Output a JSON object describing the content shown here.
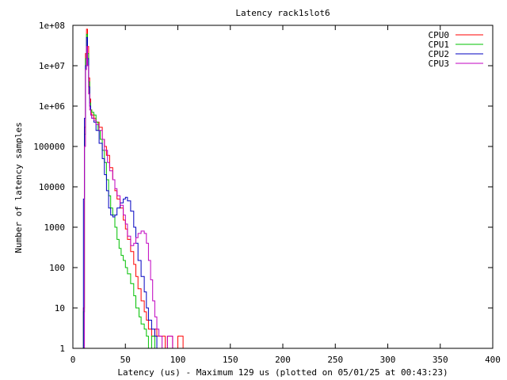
{
  "chart_data": {
    "type": "line",
    "title": "Latency rack1slot6",
    "xlabel": "Latency (us) - Maximum 129 us (plotted on 05/01/25 at 00:43:23)",
    "ylabel": "Number of latency samples",
    "xlim": [
      0,
      400
    ],
    "ylim": [
      1,
      100000000
    ],
    "yscale": "log",
    "grid": false,
    "legend": "top-right",
    "xticks": [
      0,
      50,
      100,
      150,
      200,
      250,
      300,
      350,
      400
    ],
    "yticks": [
      {
        "v": 1,
        "label": "1"
      },
      {
        "v": 10,
        "label": "10"
      },
      {
        "v": 100,
        "label": "100"
      },
      {
        "v": 1000,
        "label": "1000"
      },
      {
        "v": 10000,
        "label": "10000"
      },
      {
        "v": 100000,
        "label": "100000"
      },
      {
        "v": 1000000,
        "label": "1e+06"
      },
      {
        "v": 10000000,
        "label": "1e+07"
      },
      {
        "v": 100000000,
        "label": "1e+08"
      }
    ],
    "series": [
      {
        "name": "CPU0",
        "color": "#ff0000",
        "points": [
          [
            9,
            1
          ],
          [
            10,
            10
          ],
          [
            11,
            300000
          ],
          [
            12,
            20000000
          ],
          [
            13,
            80000000
          ],
          [
            14,
            30000000
          ],
          [
            15,
            5000000
          ],
          [
            16,
            1500000
          ],
          [
            17,
            800000
          ],
          [
            18,
            600000
          ],
          [
            20,
            500000
          ],
          [
            22,
            400000
          ],
          [
            25,
            300000
          ],
          [
            28,
            150000
          ],
          [
            30,
            100000
          ],
          [
            32,
            60000
          ],
          [
            35,
            30000
          ],
          [
            38,
            15000
          ],
          [
            40,
            8000
          ],
          [
            42,
            5000
          ],
          [
            45,
            3000
          ],
          [
            48,
            1500
          ],
          [
            50,
            900
          ],
          [
            52,
            500
          ],
          [
            55,
            250
          ],
          [
            58,
            120
          ],
          [
            60,
            60
          ],
          [
            62,
            30
          ],
          [
            65,
            15
          ],
          [
            68,
            8
          ],
          [
            70,
            5
          ],
          [
            72,
            3
          ],
          [
            75,
            2
          ],
          [
            78,
            3
          ],
          [
            80,
            2
          ],
          [
            85,
            2
          ],
          [
            88,
            1
          ],
          [
            90,
            2
          ],
          [
            95,
            1
          ],
          [
            100,
            2
          ],
          [
            105,
            1
          ],
          [
            110,
            1
          ],
          [
            115,
            1
          ],
          [
            120,
            1
          ],
          [
            129,
            1
          ]
        ]
      },
      {
        "name": "CPU1",
        "color": "#00c000",
        "points": [
          [
            9,
            1
          ],
          [
            10,
            8
          ],
          [
            11,
            200000
          ],
          [
            12,
            15000000
          ],
          [
            13,
            60000000
          ],
          [
            14,
            20000000
          ],
          [
            15,
            4000000
          ],
          [
            16,
            1200000
          ],
          [
            17,
            800000
          ],
          [
            18,
            700000
          ],
          [
            20,
            600000
          ],
          [
            22,
            400000
          ],
          [
            24,
            250000
          ],
          [
            26,
            150000
          ],
          [
            28,
            80000
          ],
          [
            30,
            40000
          ],
          [
            32,
            15000
          ],
          [
            34,
            6000
          ],
          [
            36,
            3000
          ],
          [
            38,
            2000
          ],
          [
            40,
            1000
          ],
          [
            42,
            500
          ],
          [
            44,
            300
          ],
          [
            46,
            200
          ],
          [
            48,
            150
          ],
          [
            50,
            100
          ],
          [
            52,
            70
          ],
          [
            55,
            40
          ],
          [
            58,
            20
          ],
          [
            60,
            10
          ],
          [
            63,
            6
          ],
          [
            65,
            4
          ],
          [
            68,
            3
          ],
          [
            70,
            2
          ],
          [
            72,
            1
          ],
          [
            75,
            2
          ],
          [
            78,
            1
          ],
          [
            80,
            1
          ],
          [
            83,
            1
          ]
        ]
      },
      {
        "name": "CPU2",
        "color": "#0000c0",
        "points": [
          [
            9,
            1
          ],
          [
            10,
            5000
          ],
          [
            11,
            500000
          ],
          [
            12,
            10000000
          ],
          [
            13,
            50000000
          ],
          [
            14,
            15000000
          ],
          [
            15,
            3000000
          ],
          [
            16,
            1000000
          ],
          [
            17,
            600000
          ],
          [
            18,
            500000
          ],
          [
            20,
            400000
          ],
          [
            22,
            250000
          ],
          [
            25,
            120000
          ],
          [
            28,
            50000
          ],
          [
            30,
            20000
          ],
          [
            32,
            8000
          ],
          [
            34,
            3000
          ],
          [
            36,
            2000
          ],
          [
            38,
            1800
          ],
          [
            40,
            2000
          ],
          [
            42,
            3000
          ],
          [
            45,
            4000
          ],
          [
            48,
            5000
          ],
          [
            50,
            5500
          ],
          [
            52,
            4500
          ],
          [
            55,
            2500
          ],
          [
            58,
            1000
          ],
          [
            60,
            400
          ],
          [
            62,
            150
          ],
          [
            65,
            60
          ],
          [
            68,
            25
          ],
          [
            70,
            10
          ],
          [
            72,
            5
          ],
          [
            75,
            3
          ],
          [
            78,
            2
          ],
          [
            80,
            1
          ],
          [
            85,
            1
          ],
          [
            90,
            1
          ],
          [
            95,
            1
          ]
        ]
      },
      {
        "name": "CPU3",
        "color": "#c000c0",
        "points": [
          [
            9,
            1
          ],
          [
            10,
            1
          ],
          [
            11,
            100000
          ],
          [
            12,
            8000000
          ],
          [
            13,
            30000000
          ],
          [
            14,
            10000000
          ],
          [
            15,
            2000000
          ],
          [
            16,
            800000
          ],
          [
            17,
            600000
          ],
          [
            18,
            500000
          ],
          [
            20,
            450000
          ],
          [
            22,
            350000
          ],
          [
            25,
            250000
          ],
          [
            28,
            150000
          ],
          [
            30,
            80000
          ],
          [
            33,
            40000
          ],
          [
            35,
            25000
          ],
          [
            38,
            15000
          ],
          [
            40,
            9000
          ],
          [
            42,
            6000
          ],
          [
            45,
            3500
          ],
          [
            48,
            2000
          ],
          [
            50,
            1200
          ],
          [
            52,
            600
          ],
          [
            55,
            350
          ],
          [
            58,
            400
          ],
          [
            60,
            550
          ],
          [
            62,
            700
          ],
          [
            65,
            800
          ],
          [
            68,
            700
          ],
          [
            70,
            400
          ],
          [
            72,
            150
          ],
          [
            74,
            50
          ],
          [
            76,
            15
          ],
          [
            78,
            6
          ],
          [
            80,
            3
          ],
          [
            82,
            2
          ],
          [
            85,
            1
          ],
          [
            90,
            2
          ],
          [
            95,
            1
          ],
          [
            100,
            1
          ],
          [
            105,
            1
          ],
          [
            110,
            1
          ]
        ]
      }
    ]
  }
}
